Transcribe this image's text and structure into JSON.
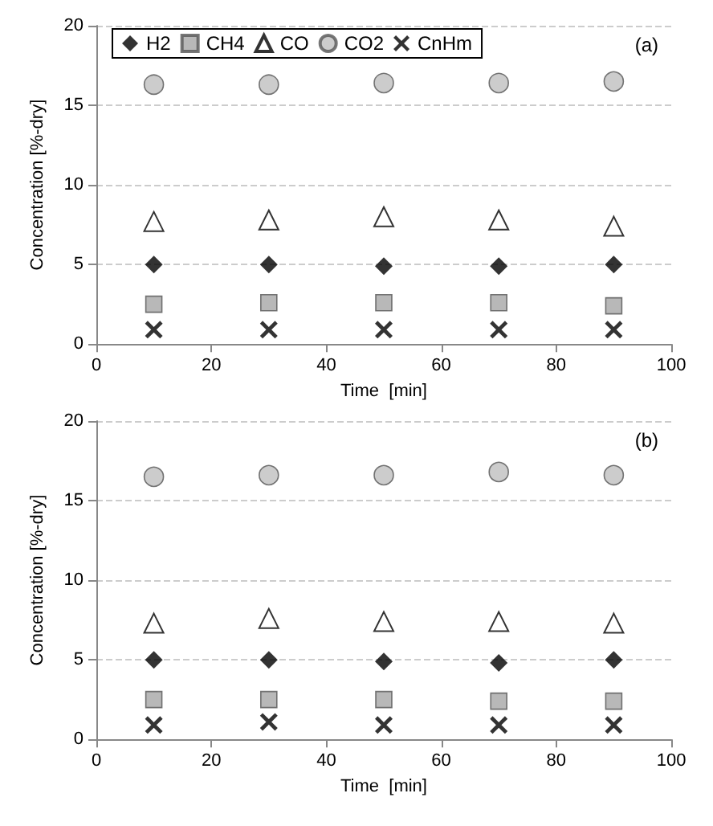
{
  "chart_data": [
    {
      "type": "scatter",
      "xlabel": "Time  [min]",
      "ylabel": "Concentration [%-dry]",
      "annotations": [
        "(a)"
      ],
      "x": [
        10,
        30,
        50,
        70,
        90
      ],
      "xlim": [
        0,
        100
      ],
      "xticks": [
        0,
        20,
        40,
        60,
        80,
        100
      ],
      "ylim": [
        0,
        20
      ],
      "yticks": [
        0,
        5,
        10,
        15,
        20
      ],
      "grid": "y",
      "legend": "top left",
      "series": [
        {
          "name": "H2",
          "color": "#000000",
          "marker": "diamond",
          "values": [
            5.0,
            5.0,
            4.9,
            4.9,
            5.0
          ]
        },
        {
          "name": "CH4",
          "color": "#a6a6a6",
          "marker": "square",
          "values": [
            2.5,
            2.6,
            2.6,
            2.6,
            2.4
          ]
        },
        {
          "name": "CO",
          "color": "#000000",
          "marker": "triangle",
          "values": [
            7.7,
            7.8,
            8.0,
            7.8,
            7.4
          ]
        },
        {
          "name": "CO2",
          "color": "#bfbfbf",
          "marker": "circle",
          "values": [
            16.3,
            16.3,
            16.4,
            16.4,
            16.5
          ]
        },
        {
          "name": "CnHm",
          "color": "#000000",
          "marker": "cross",
          "values": [
            0.9,
            0.9,
            0.9,
            0.9,
            0.9
          ]
        }
      ]
    },
    {
      "type": "scatter",
      "xlabel": "Time  [min]",
      "ylabel": "Concentration [%-dry]",
      "annotations": [
        "(b)"
      ],
      "x": [
        10,
        30,
        50,
        70,
        90
      ],
      "xlim": [
        0,
        100
      ],
      "xticks": [
        0,
        20,
        40,
        60,
        80,
        100
      ],
      "ylim": [
        0,
        20
      ],
      "yticks": [
        0,
        5,
        10,
        15,
        20
      ],
      "grid": "y",
      "series": [
        {
          "color": "#000000",
          "marker": "diamond",
          "values": [
            5.0,
            5.0,
            4.9,
            4.8,
            5.0
          ]
        },
        {
          "color": "#a6a6a6",
          "marker": "square",
          "values": [
            2.5,
            2.5,
            2.5,
            2.4,
            2.4
          ]
        },
        {
          "color": "#000000",
          "marker": "triangle",
          "values": [
            7.3,
            7.6,
            7.4,
            7.4,
            7.3
          ]
        },
        {
          "color": "#bfbfbf",
          "marker": "circle",
          "values": [
            16.5,
            16.6,
            16.6,
            16.8,
            16.6
          ]
        },
        {
          "color": "#000000",
          "marker": "cross",
          "values": [
            0.9,
            1.1,
            0.9,
            0.9,
            0.9
          ]
        }
      ]
    }
  ]
}
